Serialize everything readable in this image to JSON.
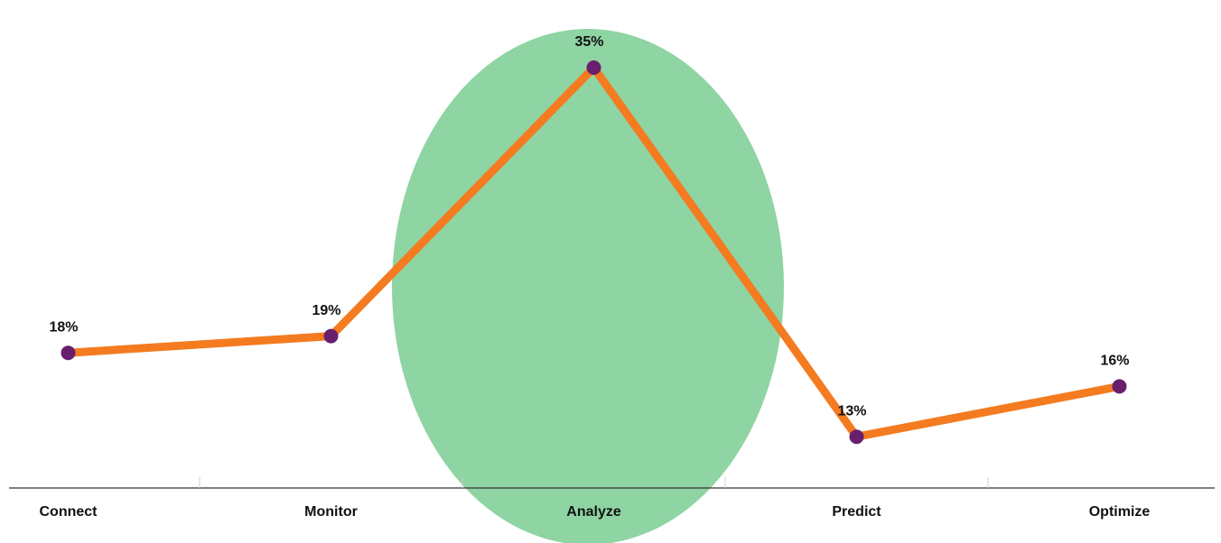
{
  "chart_data": {
    "type": "line",
    "categories": [
      "Connect",
      "Monitor",
      "Analyze",
      "Predict",
      "Optimize"
    ],
    "series": [
      {
        "color": "#f47b20",
        "marker_color": "#6a1f6e",
        "values": [
          18,
          19,
          35,
          13,
          16
        ],
        "value_labels": [
          "18%",
          "19%",
          "35%",
          "13%",
          "16%"
        ]
      }
    ]
  }
}
